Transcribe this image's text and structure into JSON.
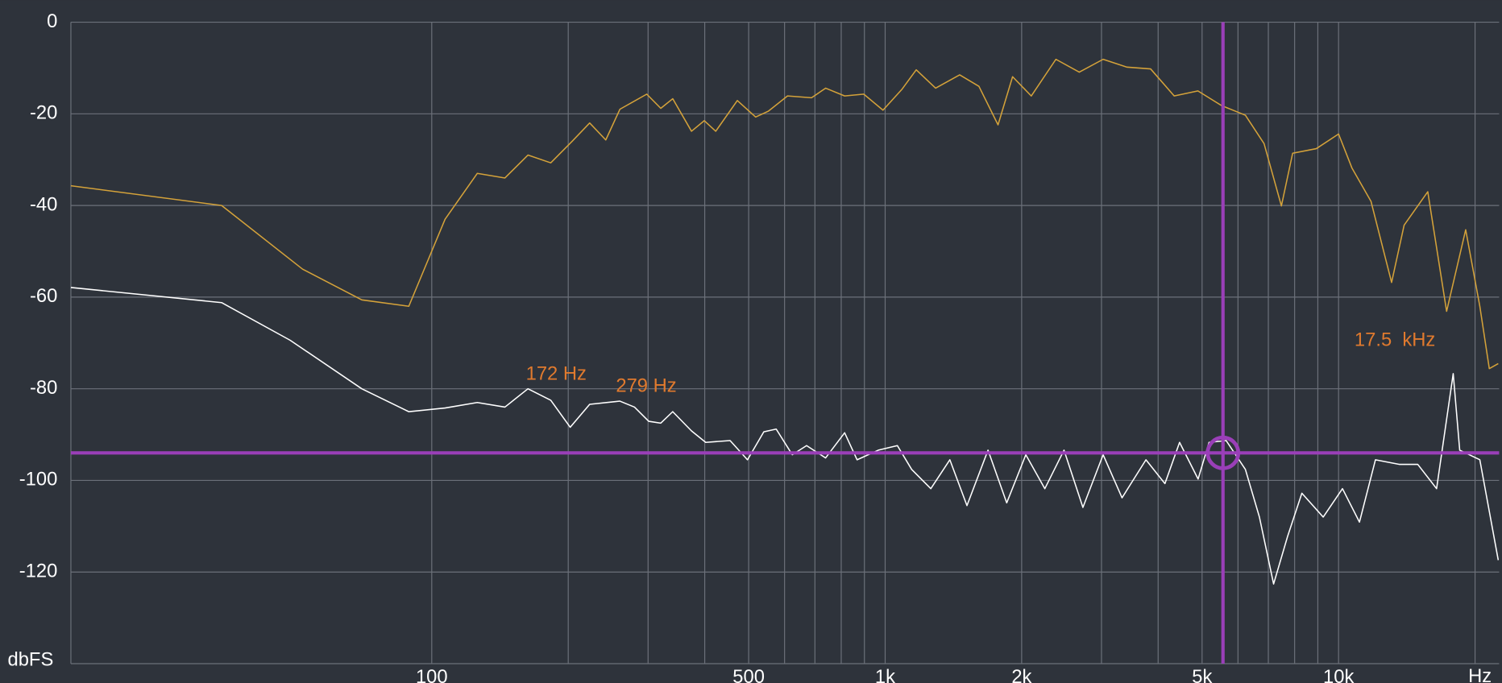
{
  "chart_data": {
    "type": "line",
    "x_label": "Hz",
    "y_label": "dbFS",
    "log_x": true,
    "grid": true,
    "xlim": [
      16,
      22600
    ],
    "ylim": [
      -140,
      0
    ],
    "xticks": [
      100,
      500,
      {
        "value": 1000,
        "label": "1k"
      },
      {
        "value": 2000,
        "label": "2k"
      },
      {
        "value": 5000,
        "label": "5k"
      },
      {
        "value": 10000,
        "label": "10k"
      }
    ],
    "xgrid": [
      200,
      300,
      400,
      600,
      700,
      800,
      900,
      3000,
      4000,
      6000,
      7000,
      8000,
      9000,
      20000
    ],
    "yticks": [
      0,
      -20,
      -40,
      -60,
      -80,
      -100,
      -120
    ],
    "annotations": [
      "172 Hz",
      "279 Hz",
      "17.5  kHz"
    ],
    "annotation_color": "#e07a2e",
    "cursor": {
      "x": 5560,
      "y": -94,
      "color": "#9a3fb8"
    },
    "series": [
      {
        "color": "#d4a23a",
        "x": [
          16,
          34.4,
          51.9,
          70.1,
          89,
          107,
          126,
          145,
          163,
          183,
          204,
          223,
          242,
          260,
          298,
          320,
          340,
          374,
          399,
          423,
          472,
          518,
          553,
          609,
          688,
          739,
          814,
          897,
          989,
          1090,
          1171,
          1292,
          1460,
          1610,
          1774,
          1910,
          2100,
          2380,
          2680,
          3025,
          3410,
          3850,
          4340,
          4895,
          5520,
          6230,
          6850,
          7480,
          7920,
          8930,
          10000,
          10700,
          11790,
          13090,
          13950,
          15730,
          17310,
          19070,
          20490,
          21500,
          22500
        ],
        "values": [
          -35.7,
          -40,
          -53.9,
          -60.6,
          -62,
          -43,
          -33,
          -34,
          -29,
          -30.7,
          -26,
          -22,
          -25.7,
          -19,
          -15.7,
          -18.8,
          -16.7,
          -23.8,
          -21.5,
          -23.8,
          -17.1,
          -20.7,
          -19.4,
          -16.1,
          -16.5,
          -14.4,
          -16.1,
          -15.7,
          -19.2,
          -14.6,
          -10.4,
          -14.4,
          -11.5,
          -14,
          -22.4,
          -11.9,
          -16.1,
          -8.1,
          -10.9,
          -8.1,
          -9.8,
          -10.2,
          -16.1,
          -15,
          -18.2,
          -20.3,
          -26.5,
          -40.1,
          -28.6,
          -27.6,
          -24.4,
          -31.8,
          -39.1,
          -56.8,
          -44.3,
          -37,
          -63.1,
          -45.3,
          -62,
          -75.6,
          -74.5
        ]
      },
      {
        "color": "#ffffff",
        "x": [
          16,
          34.4,
          48.7,
          70.1,
          89,
          107,
          126,
          145,
          163,
          183,
          202,
          223,
          260,
          280,
          301,
          320,
          340,
          374,
          402,
          455,
          497,
          540,
          575,
          624,
          671,
          739,
          814,
          867,
          966,
          1064,
          1144,
          1261,
          1389,
          1515,
          1686,
          1854,
          2043,
          2250,
          2480,
          2730,
          3025,
          3330,
          3760,
          4140,
          4460,
          4900,
          5180,
          5650,
          6230,
          6690,
          7190,
          7720,
          8300,
          9250,
          10200,
          11120,
          12060,
          13600,
          14950,
          16450,
          17900,
          18500,
          20490,
          22500
        ],
        "values": [
          -57.9,
          -61.2,
          -69.4,
          -80,
          -85,
          -84.2,
          -83,
          -84,
          -80,
          -82.5,
          -88.4,
          -83.4,
          -82.7,
          -84,
          -87.1,
          -87.5,
          -85,
          -89.2,
          -91.7,
          -91.3,
          -95.5,
          -89.4,
          -88.8,
          -94.4,
          -92.4,
          -95.1,
          -89.6,
          -95.5,
          -93.4,
          -92.4,
          -97.6,
          -101.8,
          -95.5,
          -105.5,
          -93.4,
          -104.9,
          -94.4,
          -101.8,
          -93.4,
          -105.9,
          -94.4,
          -103.8,
          -95.5,
          -100.7,
          -91.7,
          -99.7,
          -91.7,
          -91.3,
          -97.6,
          -108,
          -122.6,
          -112.2,
          -102.8,
          -108,
          -101.8,
          -109.1,
          -95.5,
          -96.5,
          -96.5,
          -101.8,
          -76.7,
          -93.4,
          -95.5,
          -117.4
        ]
      }
    ]
  }
}
